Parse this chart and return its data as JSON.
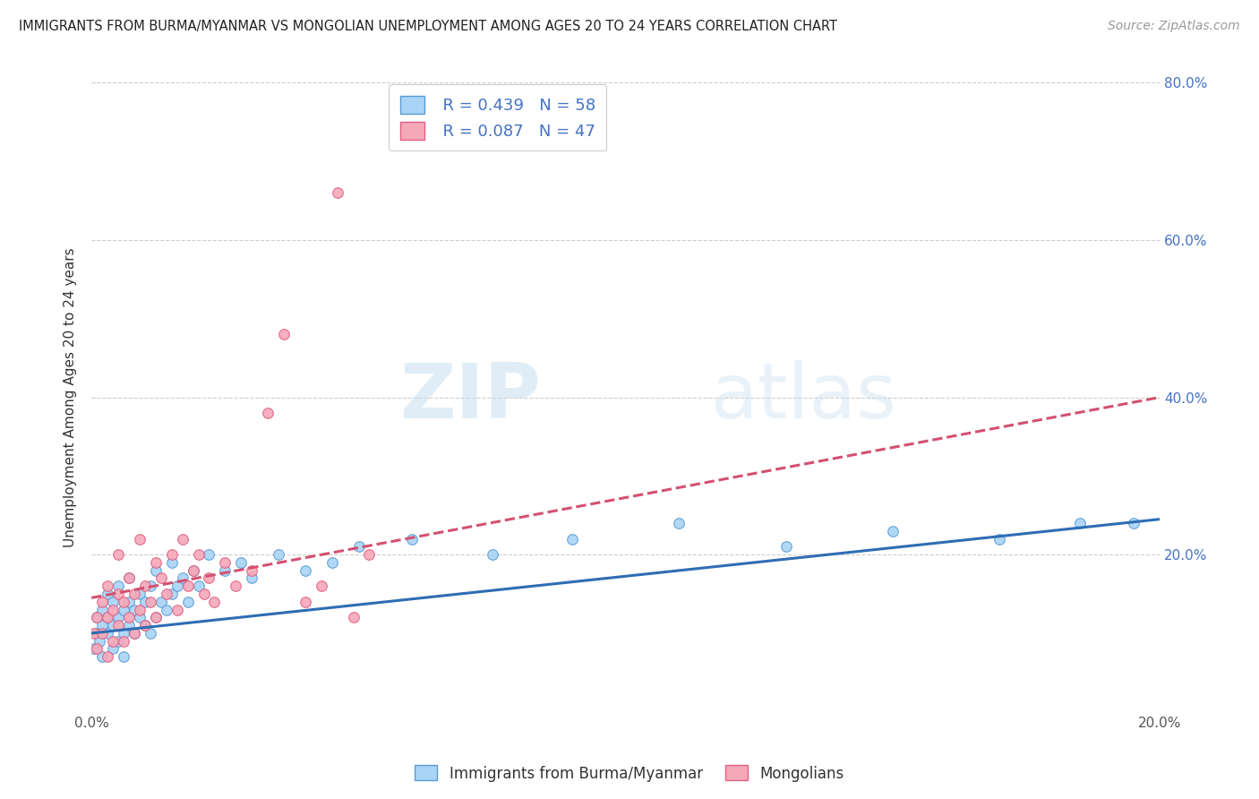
{
  "title": "IMMIGRANTS FROM BURMA/MYANMAR VS MONGOLIAN UNEMPLOYMENT AMONG AGES 20 TO 24 YEARS CORRELATION CHART",
  "source": "Source: ZipAtlas.com",
  "ylabel": "Unemployment Among Ages 20 to 24 years",
  "xlim": [
    0.0,
    0.2
  ],
  "ylim": [
    0.0,
    0.8
  ],
  "xtick_positions": [
    0.0,
    0.05,
    0.1,
    0.15,
    0.2
  ],
  "xticklabels": [
    "0.0%",
    "",
    "",
    "",
    "20.0%"
  ],
  "ytick_positions": [
    0.0,
    0.2,
    0.4,
    0.6,
    0.8
  ],
  "yticklabels_right": [
    "",
    "20.0%",
    "40.0%",
    "60.0%",
    "80.0%"
  ],
  "blue_R": 0.439,
  "blue_N": 58,
  "pink_R": 0.087,
  "pink_N": 47,
  "blue_color": "#a8d4f5",
  "pink_color": "#f5a8b8",
  "blue_edge_color": "#5b9bd5",
  "pink_edge_color": "#e06080",
  "blue_line_color": "#2e6db4",
  "pink_line_color": "#d45070",
  "watermark_zip": "ZIP",
  "watermark_atlas": "atlas",
  "legend_label_blue": "Immigrants from Burma/Myanmar",
  "legend_label_pink": "Mongolians",
  "blue_scatter_x": [
    0.0005,
    0.001,
    0.001,
    0.0015,
    0.002,
    0.002,
    0.002,
    0.003,
    0.003,
    0.003,
    0.004,
    0.004,
    0.004,
    0.005,
    0.005,
    0.005,
    0.006,
    0.006,
    0.006,
    0.007,
    0.007,
    0.007,
    0.008,
    0.008,
    0.009,
    0.009,
    0.01,
    0.01,
    0.011,
    0.011,
    0.012,
    0.012,
    0.013,
    0.014,
    0.015,
    0.015,
    0.016,
    0.017,
    0.018,
    0.019,
    0.02,
    0.022,
    0.025,
    0.028,
    0.03,
    0.035,
    0.04,
    0.045,
    0.05,
    0.06,
    0.075,
    0.09,
    0.11,
    0.13,
    0.15,
    0.17,
    0.185,
    0.195
  ],
  "blue_scatter_y": [
    0.08,
    0.1,
    0.12,
    0.09,
    0.11,
    0.13,
    0.07,
    0.1,
    0.12,
    0.15,
    0.08,
    0.11,
    0.14,
    0.09,
    0.12,
    0.16,
    0.1,
    0.13,
    0.07,
    0.11,
    0.14,
    0.17,
    0.1,
    0.13,
    0.12,
    0.15,
    0.11,
    0.14,
    0.1,
    0.16,
    0.12,
    0.18,
    0.14,
    0.13,
    0.15,
    0.19,
    0.16,
    0.17,
    0.14,
    0.18,
    0.16,
    0.2,
    0.18,
    0.19,
    0.17,
    0.2,
    0.18,
    0.19,
    0.21,
    0.22,
    0.2,
    0.22,
    0.24,
    0.21,
    0.23,
    0.22,
    0.24,
    0.24
  ],
  "pink_scatter_x": [
    0.0005,
    0.001,
    0.001,
    0.002,
    0.002,
    0.003,
    0.003,
    0.003,
    0.004,
    0.004,
    0.005,
    0.005,
    0.005,
    0.006,
    0.006,
    0.007,
    0.007,
    0.008,
    0.008,
    0.009,
    0.009,
    0.01,
    0.01,
    0.011,
    0.012,
    0.012,
    0.013,
    0.014,
    0.015,
    0.016,
    0.017,
    0.018,
    0.019,
    0.02,
    0.021,
    0.022,
    0.023,
    0.025,
    0.027,
    0.03,
    0.033,
    0.036,
    0.04,
    0.043,
    0.046,
    0.049,
    0.052
  ],
  "pink_scatter_y": [
    0.1,
    0.12,
    0.08,
    0.14,
    0.1,
    0.07,
    0.12,
    0.16,
    0.09,
    0.13,
    0.11,
    0.15,
    0.2,
    0.09,
    0.14,
    0.12,
    0.17,
    0.1,
    0.15,
    0.13,
    0.22,
    0.11,
    0.16,
    0.14,
    0.12,
    0.19,
    0.17,
    0.15,
    0.2,
    0.13,
    0.22,
    0.16,
    0.18,
    0.2,
    0.15,
    0.17,
    0.14,
    0.19,
    0.16,
    0.18,
    0.38,
    0.48,
    0.14,
    0.16,
    0.66,
    0.12,
    0.2
  ],
  "blue_line_x": [
    0.0,
    0.2
  ],
  "blue_line_y": [
    0.1,
    0.245
  ],
  "pink_line_x": [
    0.0,
    0.2
  ],
  "pink_line_y": [
    0.145,
    0.4
  ]
}
